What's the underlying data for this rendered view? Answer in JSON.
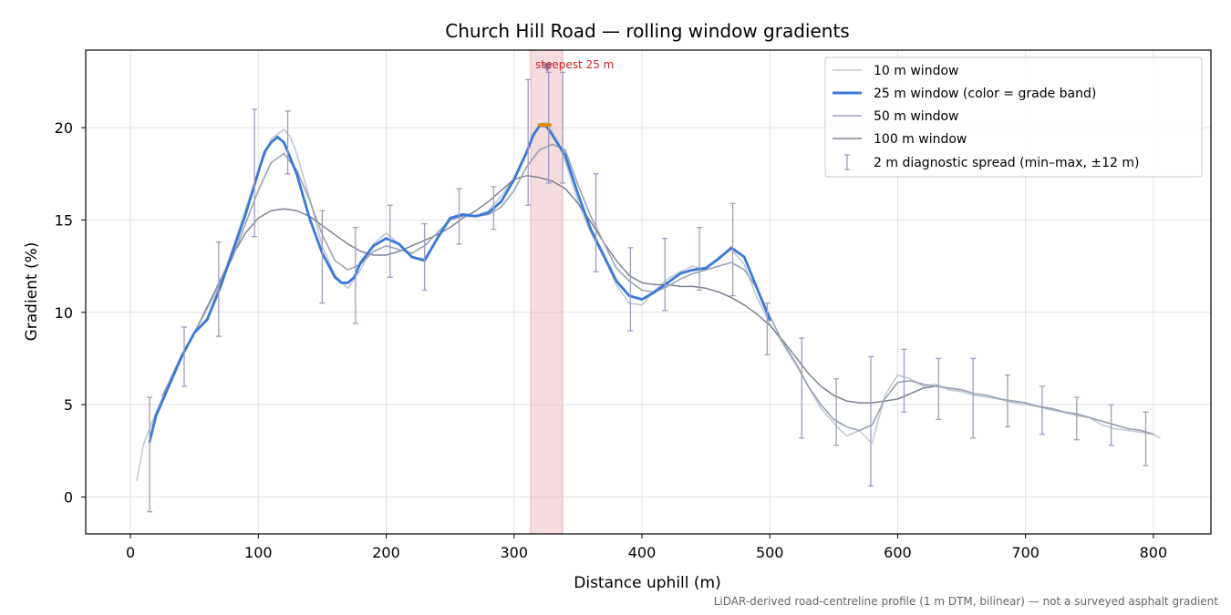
{
  "chart_data": {
    "type": "line",
    "title": "Church Hill Road — rolling window gradients",
    "xlabel": "Distance uphill (m)",
    "ylabel": "Gradient (%)",
    "xlim": [
      -35,
      845
    ],
    "ylim": [
      -2,
      24.2
    ],
    "xticks": [
      0,
      100,
      200,
      300,
      400,
      500,
      600,
      700,
      800
    ],
    "yticks": [
      0,
      5,
      10,
      15,
      20
    ],
    "grid": true,
    "legend_position": "top-right",
    "colors": {
      "w10": "#c3cad4",
      "w25": "#3a78d8",
      "w50": "#9aa3b4",
      "w100": "#7d8391",
      "errorbar": "#9f9cc0",
      "highlight": "#e8b3b8",
      "annotation": "#cc2222",
      "peak_marker": "#e08a00"
    },
    "series": [
      {
        "name": "10 m window",
        "x": [
          5,
          10,
          20,
          30,
          40,
          50,
          60,
          70,
          80,
          90,
          100,
          110,
          120,
          125,
          130,
          140,
          150,
          160,
          170,
          180,
          190,
          200,
          210,
          220,
          230,
          240,
          250,
          260,
          270,
          280,
          290,
          300,
          310,
          320,
          325,
          330,
          340,
          350,
          360,
          370,
          380,
          390,
          400,
          410,
          420,
          430,
          440,
          450,
          460,
          470,
          480,
          490,
          500,
          510,
          520,
          530,
          540,
          550,
          560,
          570,
          580,
          590,
          600,
          610,
          620,
          630,
          640,
          650,
          660,
          670,
          680,
          690,
          700,
          710,
          720,
          730,
          740,
          750,
          760,
          770,
          780,
          790,
          800,
          805
        ],
        "values": [
          0.9,
          2.8,
          4.6,
          6.1,
          7.6,
          8.9,
          9.7,
          11.5,
          13.5,
          15.6,
          17.6,
          19.4,
          19.9,
          19.5,
          18.6,
          16.2,
          13.6,
          12.0,
          11.3,
          12.3,
          13.7,
          14.3,
          13.7,
          13.0,
          12.9,
          14.0,
          15.0,
          15.3,
          15.2,
          15.5,
          16.3,
          17.3,
          18.8,
          20.2,
          20.3,
          19.8,
          18.2,
          16.0,
          14.3,
          13.0,
          11.5,
          10.5,
          10.4,
          11.2,
          11.8,
          12.2,
          12.5,
          12.3,
          13.0,
          13.4,
          12.6,
          10.8,
          9.4,
          8.3,
          7.2,
          6.0,
          4.8,
          4.0,
          3.3,
          3.6,
          2.9,
          5.5,
          6.6,
          6.4,
          6.0,
          6.1,
          5.8,
          5.7,
          5.5,
          5.4,
          5.3,
          5.1,
          5.0,
          4.9,
          4.7,
          4.6,
          4.4,
          4.3,
          3.9,
          3.7,
          3.6,
          3.5,
          3.4,
          3.2
        ]
      },
      {
        "name": "25 m window (color = grade band)",
        "x": [
          15,
          20,
          30,
          40,
          50,
          60,
          70,
          80,
          90,
          100,
          105,
          110,
          115,
          120,
          130,
          140,
          150,
          160,
          165,
          170,
          175,
          180,
          190,
          200,
          210,
          220,
          230,
          240,
          250,
          260,
          270,
          280,
          290,
          300,
          310,
          315,
          320,
          325,
          330,
          340,
          350,
          360,
          370,
          380,
          390,
          400,
          410,
          420,
          430,
          440,
          450,
          460,
          470,
          480,
          490,
          500
        ],
        "values": [
          3.0,
          4.4,
          6.0,
          7.6,
          8.9,
          9.6,
          11.3,
          13.3,
          15.3,
          17.6,
          18.7,
          19.2,
          19.5,
          19.2,
          17.5,
          15.1,
          13.2,
          11.9,
          11.6,
          11.6,
          11.9,
          12.7,
          13.6,
          14.0,
          13.7,
          13.0,
          12.8,
          14.0,
          15.1,
          15.3,
          15.2,
          15.4,
          16.0,
          17.2,
          18.7,
          19.6,
          20.1,
          20.1,
          19.6,
          18.5,
          16.4,
          14.5,
          13.1,
          11.7,
          10.9,
          10.7,
          11.1,
          11.6,
          12.1,
          12.3,
          12.4,
          12.9,
          13.5,
          13.0,
          11.3,
          9.6
        ]
      },
      {
        "name": "50 m window",
        "x": [
          25,
          30,
          40,
          50,
          60,
          70,
          80,
          90,
          100,
          110,
          120,
          130,
          140,
          150,
          160,
          170,
          180,
          190,
          200,
          210,
          220,
          230,
          240,
          250,
          260,
          270,
          280,
          290,
          300,
          310,
          320,
          330,
          340,
          350,
          360,
          370,
          380,
          390,
          400,
          410,
          420,
          430,
          440,
          450,
          460,
          470,
          480,
          490,
          500,
          510,
          520,
          530,
          540,
          550,
          560,
          570,
          580,
          590,
          600,
          610,
          620,
          630,
          640,
          650,
          660,
          670,
          680,
          690,
          700,
          710,
          720,
          730,
          740,
          750,
          760,
          770,
          780,
          790,
          800
        ],
        "values": [
          5.5,
          6.2,
          7.7,
          8.9,
          10.2,
          11.6,
          13.0,
          14.8,
          16.6,
          18.1,
          18.6,
          17.7,
          16.1,
          14.2,
          12.8,
          12.3,
          12.6,
          13.3,
          13.6,
          13.4,
          13.2,
          13.6,
          14.3,
          15.0,
          15.2,
          15.2,
          15.3,
          15.7,
          16.6,
          17.9,
          18.8,
          19.1,
          18.8,
          16.9,
          15.2,
          13.8,
          12.4,
          11.7,
          11.2,
          11.1,
          11.4,
          11.8,
          12.1,
          12.3,
          12.5,
          12.7,
          12.3,
          11.3,
          9.8,
          8.4,
          7.3,
          6.0,
          5.0,
          4.2,
          3.8,
          3.6,
          3.9,
          5.3,
          6.2,
          6.3,
          6.1,
          6.0,
          5.9,
          5.8,
          5.6,
          5.5,
          5.3,
          5.2,
          5.1,
          4.9,
          4.8,
          4.6,
          4.5,
          4.3,
          4.1,
          3.9,
          3.7,
          3.6,
          3.4
        ]
      },
      {
        "name": "100 m window",
        "x": [
          50,
          60,
          70,
          80,
          90,
          100,
          110,
          120,
          130,
          140,
          150,
          160,
          170,
          180,
          190,
          200,
          210,
          220,
          230,
          240,
          250,
          260,
          270,
          280,
          290,
          300,
          310,
          320,
          330,
          340,
          350,
          360,
          370,
          380,
          390,
          400,
          410,
          420,
          430,
          440,
          450,
          460,
          470,
          480,
          490,
          500,
          510,
          520,
          530,
          540,
          550,
          560,
          570,
          580,
          590,
          600,
          610,
          620,
          630,
          640,
          650,
          660,
          670,
          680,
          690,
          700,
          710,
          720,
          730,
          740,
          750,
          760,
          770,
          780,
          790,
          800
        ],
        "values": [
          8.9,
          10.3,
          11.7,
          13.1,
          14.3,
          15.1,
          15.5,
          15.6,
          15.5,
          15.2,
          14.7,
          14.2,
          13.7,
          13.3,
          13.1,
          13.1,
          13.3,
          13.6,
          13.9,
          14.2,
          14.6,
          15.1,
          15.5,
          16.0,
          16.6,
          17.2,
          17.4,
          17.3,
          17.1,
          16.7,
          15.9,
          14.9,
          13.8,
          12.8,
          12.0,
          11.6,
          11.5,
          11.5,
          11.4,
          11.4,
          11.3,
          11.1,
          10.8,
          10.4,
          9.9,
          9.3,
          8.5,
          7.6,
          6.7,
          6.0,
          5.5,
          5.2,
          5.1,
          5.1,
          5.2,
          5.3,
          5.6,
          5.9,
          6.0,
          5.9,
          5.8,
          5.6,
          5.5,
          5.3,
          5.2,
          5.1,
          4.9,
          4.8,
          4.6,
          4.5,
          4.3,
          4.1,
          3.9,
          3.7,
          3.6,
          3.4
        ]
      }
    ],
    "errorbars": {
      "name": "2 m diagnostic spread (min–max, ±12 m)",
      "x": [
        15,
        42,
        69,
        97,
        123,
        150,
        176,
        203,
        230,
        257,
        284,
        311,
        327,
        338,
        364,
        391,
        418,
        445,
        471,
        498,
        525,
        552,
        579,
        605,
        632,
        659,
        686,
        713,
        740,
        767,
        794
      ],
      "low": [
        -0.8,
        6.0,
        8.7,
        14.1,
        17.5,
        10.5,
        9.4,
        11.9,
        11.2,
        13.7,
        14.5,
        15.8,
        17.0,
        17.0,
        12.2,
        9.0,
        10.1,
        11.2,
        10.9,
        7.7,
        3.2,
        2.8,
        0.6,
        4.6,
        4.2,
        3.2,
        3.8,
        3.4,
        3.1,
        2.8,
        1.7
      ],
      "high": [
        5.4,
        9.2,
        13.8,
        21.0,
        20.9,
        15.5,
        14.6,
        15.8,
        14.8,
        16.7,
        16.8,
        22.6,
        23.0,
        23.0,
        17.5,
        13.5,
        14.0,
        14.6,
        15.9,
        10.5,
        8.6,
        6.4,
        7.6,
        8.0,
        7.5,
        7.5,
        6.6,
        6.0,
        5.4,
        5.0,
        4.6
      ]
    },
    "highlight_band": {
      "x0": 313,
      "x1": 338,
      "label": "steepest 25 m"
    },
    "peak_marker": {
      "x": 326,
      "y": 23.3
    },
    "peak_segment": {
      "x0": 320,
      "x1": 328,
      "y": 20.15
    },
    "footnote": "LiDAR-derived road-centreline profile (1 m DTM, bilinear) — not a surveyed asphalt gradient"
  }
}
